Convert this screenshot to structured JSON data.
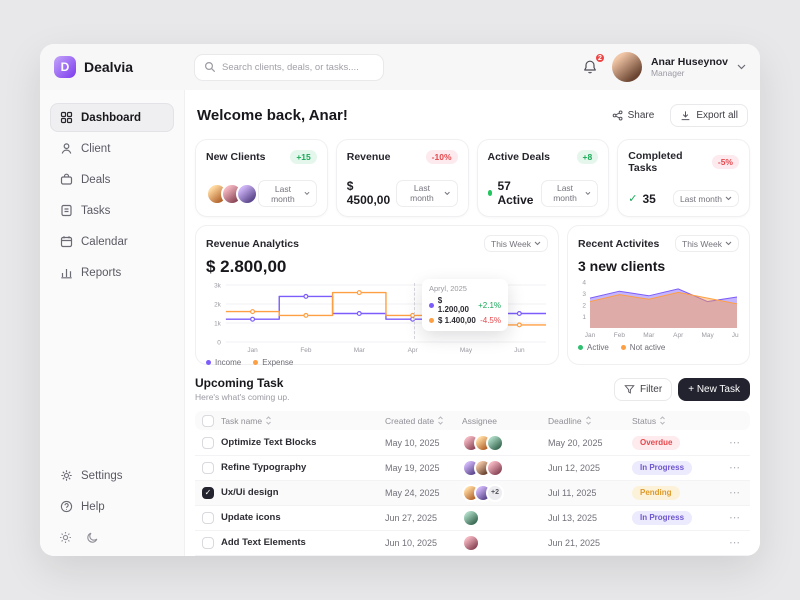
{
  "app": {
    "brand": "Dealvia",
    "logo_letter": "D"
  },
  "colors": {
    "accent": "#7c5cfa",
    "orange": "#ff9f43",
    "green": "#18a957",
    "red": "#e5484d",
    "dark_button": "#232330"
  },
  "header": {
    "search_placeholder": "Search clients, deals, or tasks....",
    "notification_count": "2",
    "user_name": "Anar Huseynov",
    "user_role": "Manager"
  },
  "sidebar": {
    "items": [
      {
        "label": "Dashboard"
      },
      {
        "label": "Client"
      },
      {
        "label": "Deals"
      },
      {
        "label": "Tasks"
      },
      {
        "label": "Calendar"
      },
      {
        "label": "Reports"
      }
    ],
    "settings_label": "Settings",
    "help_label": "Help"
  },
  "main": {
    "welcome": "Welcome back, Anar!",
    "share_label": "Share",
    "export_label": "Export all"
  },
  "stats": [
    {
      "title": "New Clients",
      "badge": "+15",
      "period": "Last month"
    },
    {
      "title": "Revenue",
      "badge": "-10%",
      "value": "$ 4500,00",
      "period": "Last month"
    },
    {
      "title": "Active Deals",
      "badge": "+8",
      "value": "57 Active",
      "period": "Last month"
    },
    {
      "title": "Completed Tasks",
      "badge": "-5%",
      "value": "35",
      "period": "Last month"
    }
  ],
  "revenue": {
    "title": "Revenue Analytics",
    "period": "This Week",
    "total": "$ 2.800,00",
    "legend": [
      {
        "label": "Income"
      },
      {
        "label": "Expense"
      }
    ],
    "tooltip": {
      "title": "Apryl, 2025",
      "rows": [
        {
          "value": "$ 1.200,00",
          "delta": "+2.1%"
        },
        {
          "value": "$ 1.400,00",
          "delta": "-4.5%"
        }
      ]
    }
  },
  "activities": {
    "title": "Recent Activites",
    "period": "This Week",
    "headline": "3 new clients",
    "legend": [
      {
        "label": "Active"
      },
      {
        "label": "Not active"
      }
    ]
  },
  "tasks": {
    "title": "Upcoming Task",
    "subtitle": "Here's what's coming up.",
    "filter_label": "Filter",
    "new_task_label": "+ New Task",
    "columns": [
      "Task name",
      "Created date",
      "Assignee",
      "Deadline",
      "Status"
    ],
    "rows": [
      {
        "name": "Optimize Text Blocks",
        "created": "May 10, 2025",
        "deadline": "May 20, 2025",
        "status": "Overdue"
      },
      {
        "name": "Refine Typography",
        "created": "May 19, 2025",
        "deadline": "Jun 12, 2025",
        "status": "In Progress"
      },
      {
        "name": "Ux/Ui design",
        "created": "May 24, 2025",
        "deadline": "Jul 11, 2025",
        "status": "Pending",
        "assignee_extra": "+2",
        "checked": true
      },
      {
        "name": "Update icons",
        "created": "Jun 27, 2025",
        "deadline": "Jul 13, 2025",
        "status": "In Progress"
      },
      {
        "name": "Add Text Elements",
        "created": "Jun 10, 2025",
        "deadline": "Jun 21, 2025"
      }
    ]
  },
  "chart_data": [
    {
      "type": "line",
      "step": true,
      "title": "Revenue Analytics",
      "x": [
        "Jan",
        "Feb",
        "Mar",
        "Apr",
        "May",
        "Jun"
      ],
      "series": [
        {
          "name": "Income",
          "color": "#7c5cfa",
          "values": [
            1200,
            2400,
            1500,
            1200,
            2400,
            1500
          ]
        },
        {
          "name": "Expense",
          "color": "#ff9f43",
          "values": [
            1600,
            1400,
            2600,
            1400,
            1700,
            900
          ]
        }
      ],
      "ylim": [
        0,
        3000
      ],
      "yticks": [
        {
          "label": "3k",
          "value": 3000
        },
        {
          "label": "2k",
          "value": 2000
        },
        {
          "label": "1k",
          "value": 1000
        },
        {
          "label": "0",
          "value": 0
        }
      ],
      "legend_position": "bottom-left",
      "grid": true
    },
    {
      "type": "area",
      "title": "Recent Activites",
      "x": [
        "Jan",
        "Feb",
        "Mar",
        "Apr",
        "May",
        "Jun"
      ],
      "series": [
        {
          "name": "Active",
          "color": "#7c5cfa",
          "values": [
            2.6,
            3.2,
            2.8,
            3.4,
            2.3,
            2.7
          ]
        },
        {
          "name": "Not active",
          "color": "#ff9f43",
          "values": [
            2.3,
            2.9,
            2.5,
            3.1,
            2.6,
            2.1
          ]
        }
      ],
      "ylim": [
        0,
        4
      ],
      "yticks": [
        {
          "label": "4",
          "value": 4
        },
        {
          "label": "3",
          "value": 3
        },
        {
          "label": "2",
          "value": 2
        },
        {
          "label": "1",
          "value": 1
        }
      ],
      "legend_position": "bottom-left",
      "grid": false
    }
  ]
}
